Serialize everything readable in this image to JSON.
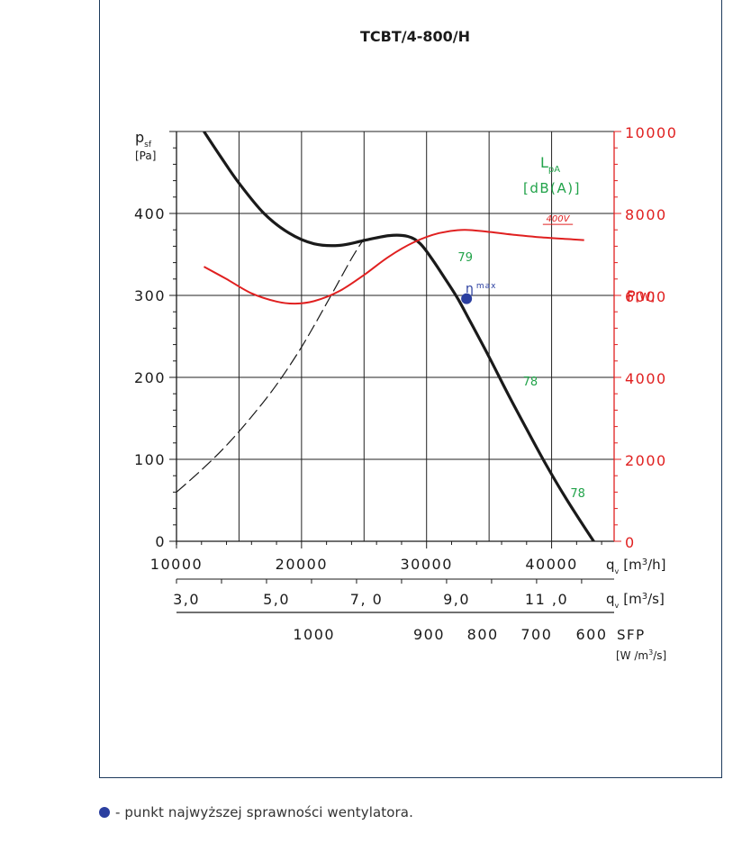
{
  "chart_data": {
    "type": "line",
    "title": "TCBT/4-800/H",
    "ylabel_main": "p",
    "ylabel_sub": "sf",
    "ylabel_unit": "[Pa]",
    "ylim": [
      0,
      500
    ],
    "y_ticks": [
      0,
      100,
      200,
      300,
      400
    ],
    "xlim": [
      10000,
      45000
    ],
    "x_ticks": [
      10000,
      20000,
      30000,
      40000
    ],
    "x_label_main": "q",
    "x_label_sub": "v",
    "x_label_unit": "[m",
    "x_label_unit_sup": "3",
    "x_label_unit_end": "/h]",
    "x2_label_unit_end": "/s]",
    "x2_ticks": [
      {
        "label": "3,0",
        "x": 10800
      },
      {
        "label": "5,0",
        "x": 18000
      },
      {
        "label": "7, 0",
        "x": 25200
      },
      {
        "label": "9,0",
        "x": 32400
      },
      {
        "label": "11 ,0",
        "x": 39600
      }
    ],
    "sfp_ticks": [
      {
        "label": "1000",
        "x": 21000
      },
      {
        "label": "900",
        "x": 30200
      },
      {
        "label": "800",
        "x": 34500
      },
      {
        "label": "700",
        "x": 38800
      },
      {
        "label": "600",
        "x": 43200
      }
    ],
    "sfp_label": "SFP",
    "sfp_unit_a": "[W /m",
    "sfp_unit_sup": "3",
    "sfp_unit_b": "/s]",
    "power_label": "P",
    "power_unit": "[W]",
    "power_ylim": [
      0,
      10000
    ],
    "power_ticks": [
      0,
      2000,
      4000,
      6000,
      8000,
      10000
    ],
    "noise_label": "L",
    "noise_sub": "pA",
    "noise_unit": "[dB(A)]",
    "eta_label": "η",
    "eta_sub": "max",
    "series": [
      {
        "name": "",
        "role": "pressure",
        "x": [
          12200,
          13500,
          15000,
          17000,
          19000,
          21000,
          23000,
          25000,
          27000,
          28500,
          29500,
          30500,
          31500,
          32500,
          33500,
          35000,
          36500,
          38000,
          39500,
          41000,
          42500,
          43800
        ],
        "y": [
          500,
          470,
          437,
          400,
          376,
          363,
          361,
          367,
          373,
          372,
          363,
          343,
          320,
          296,
          268,
          225,
          180,
          137,
          95,
          56,
          20,
          -10
        ]
      },
      {
        "name": "",
        "role": "system",
        "x": [
          10000,
          12000,
          14000,
          16000,
          18000,
          20000,
          22000,
          24000,
          25000
        ],
        "y": [
          60,
          87,
          117,
          152,
          191,
          237,
          290,
          345,
          369
        ]
      },
      {
        "name": "400V",
        "role": "power",
        "x": [
          12200,
          14000,
          16000,
          18000,
          19500,
          21000,
          23000,
          25000,
          27000,
          29000,
          31000,
          33000,
          35000,
          37000,
          39000,
          41000,
          42600
        ],
        "y": [
          6700,
          6400,
          6050,
          5850,
          5800,
          5860,
          6100,
          6500,
          6950,
          7300,
          7520,
          7600,
          7550,
          7480,
          7420,
          7380,
          7350
        ]
      }
    ],
    "eta_point": {
      "x": 33200,
      "y": 296
    },
    "noise_labels": [
      {
        "text": "79",
        "x": 32500,
        "y": 342
      },
      {
        "text": "78",
        "x": 37700,
        "y": 190
      },
      {
        "text": "78",
        "x": 41500,
        "y": 54
      }
    ],
    "colors": {
      "pressure": "#1a1a1a",
      "system": "#1a1a1a",
      "power": "#e02020",
      "noise": "#22a34a",
      "eta": "#2b3fa0",
      "axis": "#1a1a1a",
      "frame": "#1d3a5c"
    }
  },
  "footnote": "- punkt najwyższej sprawności wentylatora."
}
